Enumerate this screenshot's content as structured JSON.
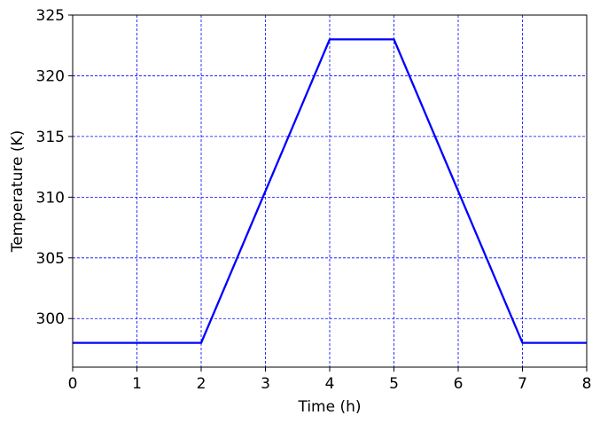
{
  "chart_data": {
    "type": "line",
    "xlabel": "Time (h)",
    "ylabel": "Temperature (K)",
    "xlim": [
      0,
      8
    ],
    "ylim": [
      296,
      325
    ],
    "xticks": [
      0,
      1,
      2,
      3,
      4,
      5,
      6,
      7,
      8
    ],
    "yticks": [
      300,
      305,
      310,
      315,
      320,
      325
    ],
    "grid": true,
    "grid_color": "#0000ff",
    "series": [
      {
        "color": "#0000ff",
        "x": [
          0,
          2,
          4,
          5,
          7,
          8
        ],
        "y": [
          298,
          298,
          323,
          323,
          298,
          298
        ]
      }
    ]
  }
}
